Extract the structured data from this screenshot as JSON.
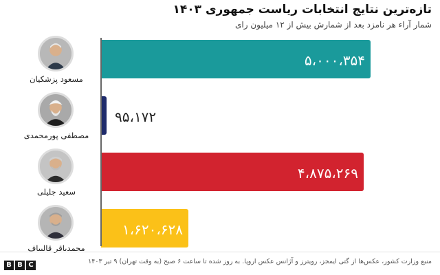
{
  "title": "تازه‌ترین نتایج انتخابات ریاست جمهوری ۱۴۰۳",
  "subtitle": "شمار آراء هر نامزد بعد از شمارش بیش از ۱۲ میلیون رای",
  "source": "منبع وزارت کشور، عکس‌ها از گتی ایمجز، رویترز و آژانس عکس اروپا. به روز شده تا ساعت ۶ صبح (به وقت تهران)  ۹ تیر ۱۴۰۳",
  "logo_letters": [
    "B",
    "B",
    "C"
  ],
  "colors": {
    "pezeshkian": "#1a9a9b",
    "pourmohammadi": "#1f2b6b",
    "jalili": "#d2232f",
    "ghalibaf": "#fbc118",
    "axis": "#666666"
  },
  "chart_data": {
    "type": "bar",
    "orientation": "horizontal",
    "title": "تازه‌ترین نتایج انتخابات ریاست جمهوری ۱۴۰۳",
    "subtitle": "شمار آراء هر نامزد بعد از شمارش بیش از ۱۲ میلیون رای",
    "categories": [
      "مسعود پزشکیان",
      "مصطفی پورمحمدی",
      "سعید جلیلی",
      "محمدباقر قالیباف"
    ],
    "values": [
      5000354,
      95172,
      4875269,
      1620628
    ],
    "labels": [
      "۵،۰۰۰،۳۵۴",
      "۹۵،۱۷۲",
      "۴،۸۷۵،۲۶۹",
      "۱،۶۲۰،۶۲۸"
    ],
    "bar_colors": [
      "#1a9a9b",
      "#1f2b6b",
      "#d2232f",
      "#fbc118"
    ],
    "label_position": [
      "inside",
      "outside",
      "inside",
      "inside"
    ],
    "xlim": [
      0,
      5000354
    ],
    "grid": false,
    "legend": "none"
  }
}
